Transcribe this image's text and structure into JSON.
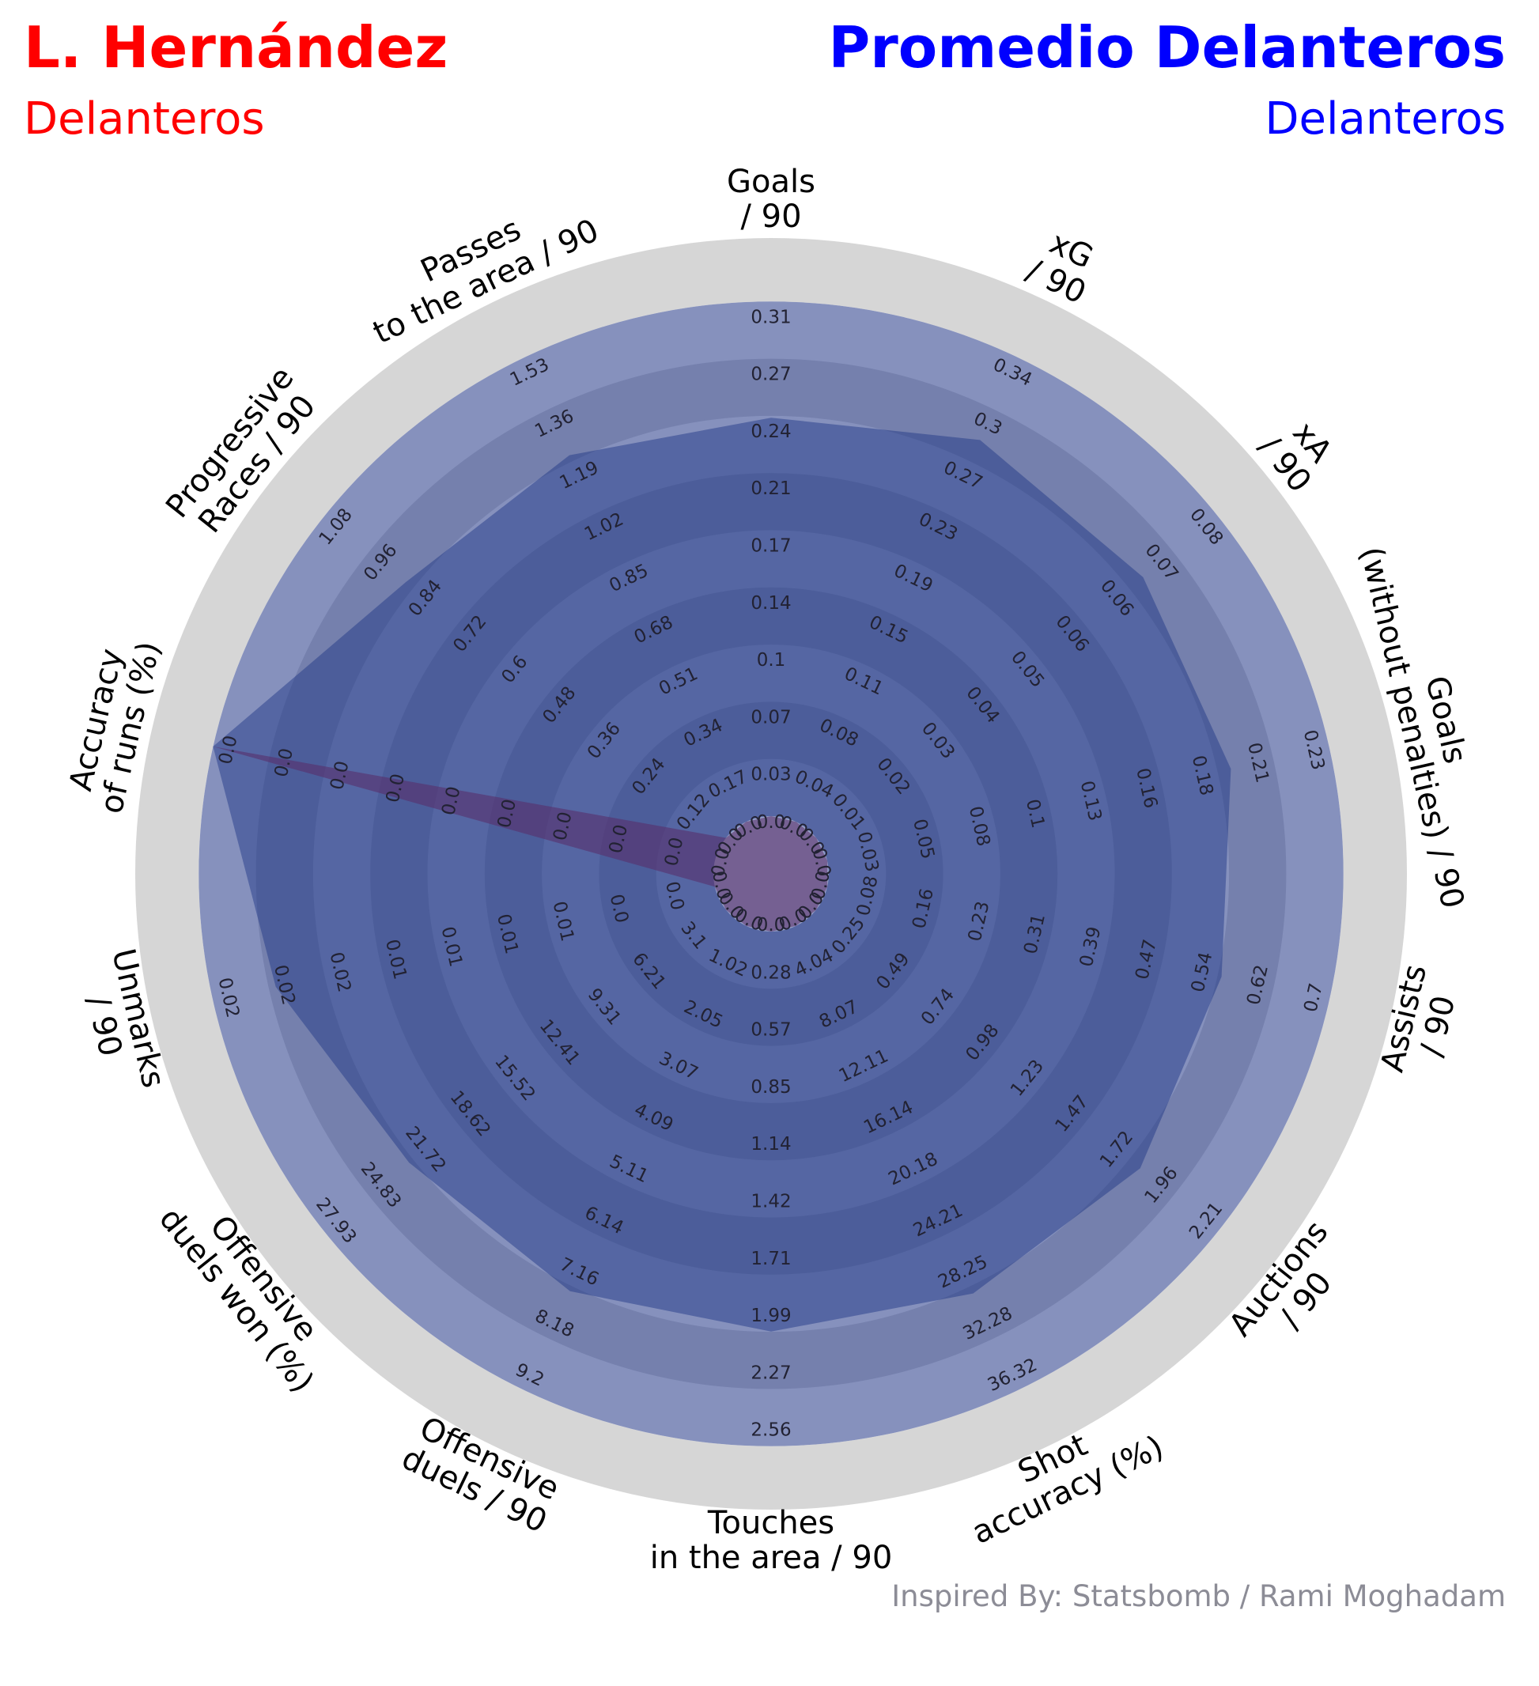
{
  "header": {
    "player_name": "L. Hernández",
    "player_group": "Delanteros",
    "compare_name": "Promedio Delanteros",
    "compare_group": "Delanteros"
  },
  "colors": {
    "player": "#ff0000",
    "compare": "#0000ff",
    "compare_fill": "#1a3382",
    "player_fill": "#8b2250",
    "ring_light": "#8691bd",
    "ring_dark": "#7580ad",
    "outer_band": "#d6d6d6",
    "credit": "#8c8c96"
  },
  "credit": "Inspired By: Statsbomb / Rami Moghadam",
  "chart_data": {
    "type": "radar",
    "title": "",
    "params": [
      {
        "label": [
          "Goals",
          "/ 90"
        ],
        "ticks": [
          "0.0",
          "0.03",
          "0.07",
          "0.1",
          "0.14",
          "0.17",
          "0.21",
          "0.24",
          "0.27",
          "0.31"
        ],
        "player": 0.0,
        "average": 0.24
      },
      {
        "label": [
          "xG",
          "/ 90"
        ],
        "ticks": [
          "0.0",
          "0.04",
          "0.08",
          "0.11",
          "0.15",
          "0.19",
          "0.23",
          "0.27",
          "0.3",
          "0.34"
        ],
        "player": 0.0,
        "average": 0.28
      },
      {
        "label": [
          "xA",
          "/ 90"
        ],
        "ticks": [
          "0.0",
          "0.01",
          "0.02",
          "0.03",
          "0.04",
          "0.05",
          "0.06",
          "0.06",
          "0.07",
          "0.08"
        ],
        "player": 0.0,
        "average": 0.065
      },
      {
        "label": [
          "Goals",
          "(without penalties) / 90"
        ],
        "ticks": [
          "0.0",
          "0.03",
          "0.05",
          "0.08",
          "0.1",
          "0.13",
          "0.16",
          "0.18",
          "0.21",
          "0.23"
        ],
        "player": 0.0,
        "average": 0.185
      },
      {
        "label": [
          "Assists",
          "/ 90"
        ],
        "ticks": [
          "0.0",
          "0.08",
          "0.16",
          "0.23",
          "0.31",
          "0.39",
          "0.47",
          "0.54",
          "0.62",
          "0.7"
        ],
        "player": 0.0,
        "average": 0.55
      },
      {
        "label": [
          "Auctions",
          "/ 90"
        ],
        "ticks": [
          "0.0",
          "0.25",
          "0.49",
          "0.74",
          "0.98",
          "1.23",
          "1.47",
          "1.72",
          "1.96",
          "2.21"
        ],
        "player": 0.0,
        "average": 1.78
      },
      {
        "label": [
          "Shot",
          "accuracy (%)"
        ],
        "ticks": [
          "0.0",
          "4.04",
          "8.07",
          "12.11",
          "16.14",
          "20.18",
          "24.21",
          "28.25",
          "32.28",
          "36.32"
        ],
        "player": 0.0,
        "average": 28.8
      },
      {
        "label": [
          "Touches",
          "in the area / 90"
        ],
        "ticks": [
          "0.0",
          "0.28",
          "0.57",
          "0.85",
          "1.14",
          "1.42",
          "1.71",
          "1.99",
          "2.27",
          "2.56"
        ],
        "player": 0.0,
        "average": 1.99
      },
      {
        "label": [
          "Offensive",
          "duels / 90"
        ],
        "ticks": [
          "0.0",
          "1.02",
          "2.05",
          "3.07",
          "4.09",
          "5.11",
          "6.14",
          "7.16",
          "8.18",
          "9.2"
        ],
        "player": 0.0,
        "average": 7.25
      },
      {
        "label": [
          "Offensive",
          "duels won (%)"
        ],
        "ticks": [
          "0.0",
          "3.1",
          "6.21",
          "9.31",
          "12.41",
          "15.52",
          "18.62",
          "21.72",
          "24.83",
          "27.93"
        ],
        "player": 0.0,
        "average": 22.0
      },
      {
        "label": [
          "Unmarks",
          "/ 90"
        ],
        "ticks": [
          "0.0",
          "0.0",
          "0.0",
          "0.01",
          "0.01",
          "0.01",
          "0.01",
          "0.02",
          "0.02",
          "0.02"
        ],
        "player": 0.0,
        "average": 0.0175
      },
      {
        "label": [
          "Accuracy",
          "of runs (%)"
        ],
        "ticks": [
          "0.0",
          "0.0",
          "0.0",
          "0.0",
          "0.0",
          "0.0",
          "0.0",
          "0.0",
          "0.0",
          "0.0"
        ],
        "player": 0.0256,
        "average": 0.0256
      },
      {
        "label": [
          "Progressive",
          "Races / 90"
        ],
        "ticks": [
          "0.0",
          "0.12",
          "0.24",
          "0.36",
          "0.48",
          "0.6",
          "0.72",
          "0.84",
          "0.96",
          "1.08"
        ],
        "player": 0.0,
        "average": 0.86
      },
      {
        "label": [
          "Passes",
          "to the area / 90"
        ],
        "ticks": [
          "0.0",
          "0.17",
          "0.34",
          "0.51",
          "0.68",
          "0.85",
          "1.02",
          "1.19",
          "1.36",
          "1.53"
        ],
        "player": 0.0,
        "average": 1.21
      }
    ],
    "series": [
      {
        "name": "L. Hernández",
        "key": "player"
      },
      {
        "name": "Promedio Delanteros",
        "key": "average"
      }
    ],
    "grid": true,
    "rings": 10
  }
}
